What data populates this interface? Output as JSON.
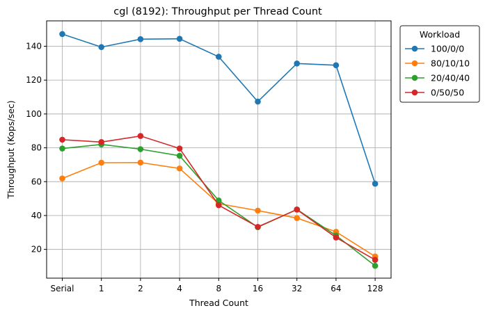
{
  "chart_data": {
    "type": "line",
    "title": "cgl (8192): Throughput per Thread Count",
    "xlabel": "Thread Count",
    "ylabel": "Throughput (Kops/sec)",
    "categories": [
      "Serial",
      "1",
      "2",
      "4",
      "8",
      "16",
      "32",
      "64",
      "128"
    ],
    "ylim": [
      3,
      155
    ],
    "yticks": [
      20,
      40,
      60,
      80,
      100,
      120,
      140
    ],
    "grid": true,
    "legend": {
      "title": "Workload",
      "placement": "outside-top-right"
    },
    "series": [
      {
        "name": "100/0/0",
        "color": "#1f77b4",
        "values": [
          147.2,
          139.5,
          144.2,
          144.4,
          133.8,
          107.3,
          129.8,
          128.8,
          58.8
        ]
      },
      {
        "name": "80/10/10",
        "color": "#ff7f0e",
        "values": [
          61.9,
          71.2,
          71.3,
          67.8,
          47.0,
          42.9,
          38.5,
          30.4,
          15.8
        ]
      },
      {
        "name": "20/40/40",
        "color": "#2ca02c",
        "values": [
          79.6,
          82.0,
          79.2,
          75.3,
          48.9,
          33.1,
          43.6,
          28.2,
          10.3
        ]
      },
      {
        "name": "0/50/50",
        "color": "#d62728",
        "values": [
          84.8,
          83.4,
          87.0,
          79.6,
          46.1,
          33.3,
          43.5,
          27.0,
          13.8
        ]
      }
    ]
  }
}
